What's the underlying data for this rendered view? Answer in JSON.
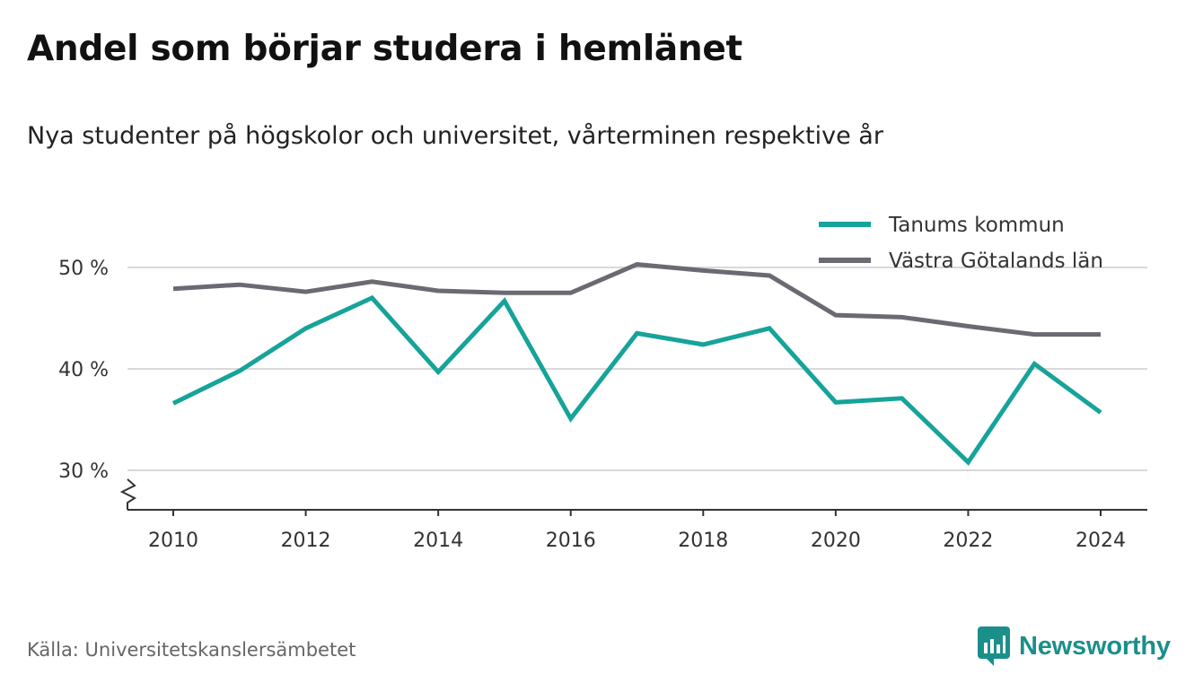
{
  "header": {
    "title": "Andel som börjar studera i hemlänet",
    "subtitle": "Nya studenter på högskolor och universitet, vårterminen respektive år"
  },
  "footer": {
    "source": "Källa: Universitetskanslersämbetet",
    "brand": "Newsworthy"
  },
  "colors": {
    "tanum": "#16a39a",
    "vastra_gotaland": "#6b6a72",
    "grid": "#d9d9d9",
    "axis": "#333333",
    "brand": "#1b8f8a"
  },
  "chart_data": {
    "type": "line",
    "x": [
      2010,
      2011,
      2012,
      2013,
      2014,
      2015,
      2016,
      2017,
      2018,
      2019,
      2020,
      2021,
      2022,
      2023,
      2024
    ],
    "series": [
      {
        "name": "Tanums kommun",
        "color": "#16a39a",
        "values": [
          36.6,
          39.8,
          44.0,
          47.0,
          39.7,
          46.7,
          35.1,
          43.5,
          42.4,
          44.0,
          36.7,
          37.1,
          30.8,
          40.5,
          35.7
        ]
      },
      {
        "name": "Västra Götalands län",
        "color": "#6b6a72",
        "values": [
          47.9,
          48.3,
          47.6,
          48.6,
          47.7,
          47.5,
          47.5,
          50.3,
          49.7,
          49.2,
          45.3,
          45.1,
          44.2,
          43.4,
          43.4
        ]
      }
    ],
    "ylim": [
      26,
      56
    ],
    "yticks": [
      30,
      40,
      50
    ],
    "ytick_labels": [
      "30 %",
      "40 %",
      "50 %"
    ],
    "xticks": [
      2010,
      2012,
      2014,
      2016,
      2018,
      2020,
      2022,
      2024
    ],
    "xtick_labels": [
      "2010",
      "2012",
      "2014",
      "2016",
      "2018",
      "2020",
      "2022",
      "2024"
    ],
    "xlabel": "",
    "ylabel": "",
    "grid": true,
    "legend_position": "top-right",
    "axis_break": true
  }
}
